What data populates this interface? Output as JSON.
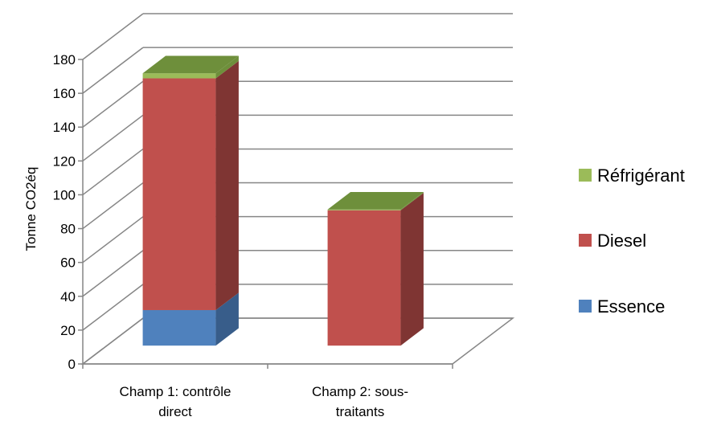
{
  "chart_data": {
    "type": "bar",
    "stacked": true,
    "three_d": true,
    "categories": [
      [
        "Champ 1: contrôle",
        "direct"
      ],
      [
        "Champ 2: sous-",
        "traitants"
      ]
    ],
    "series": [
      {
        "name": "Essence",
        "values": [
          21,
          0
        ],
        "color": "#4F81BD",
        "side_color": "#385D8A"
      },
      {
        "name": "Diesel",
        "values": [
          137,
          80
        ],
        "color": "#C0504D",
        "side_color": "#7F3533"
      },
      {
        "name": "Réfrigérant",
        "values": [
          3,
          0.5
        ],
        "color": "#9BBB59",
        "side_color": "#6E8F3B"
      }
    ],
    "ylabel": "Tonne CO2éq",
    "ylim": [
      0,
      180
    ],
    "yticks": [
      "0",
      "20",
      "40",
      "60",
      "80",
      "100",
      "120",
      "140",
      "160",
      "180"
    ],
    "grid": true,
    "legend_position": "right",
    "legend_order": [
      "Réfrigérant",
      "Diesel",
      "Essence"
    ]
  }
}
